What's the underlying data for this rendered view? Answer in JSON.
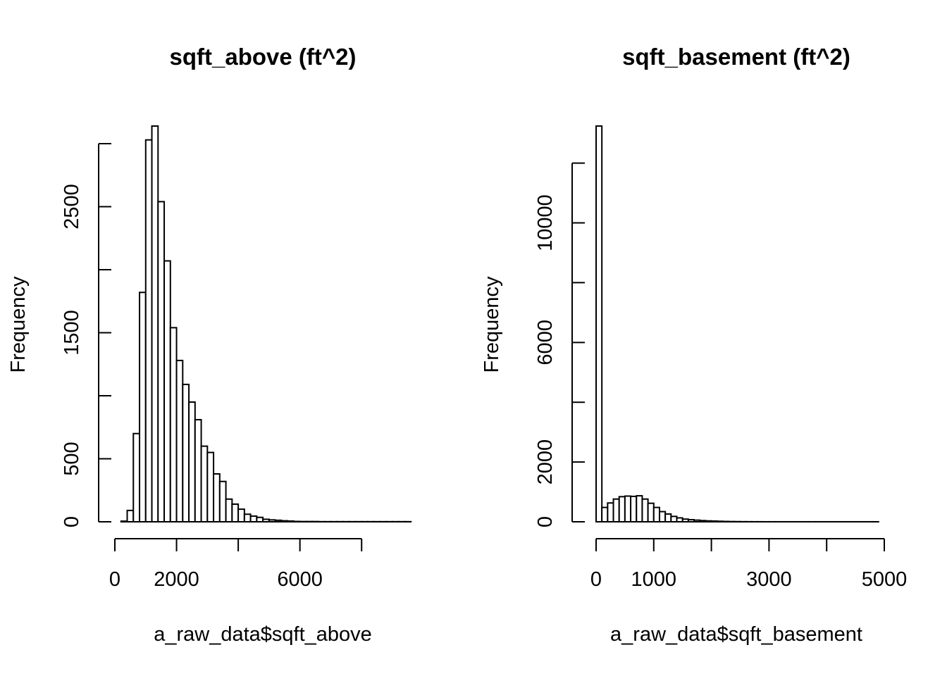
{
  "chart_data": [
    {
      "type": "bar",
      "title": "sqft_above (ft^2)",
      "xlabel": "a_raw_data$sqft_above",
      "ylabel": "Frequency",
      "bin_start": 200,
      "bin_width": 200,
      "values": [
        5,
        90,
        700,
        1820,
        3030,
        3140,
        2540,
        2070,
        1540,
        1280,
        1090,
        950,
        810,
        600,
        550,
        380,
        320,
        180,
        140,
        100,
        60,
        45,
        35,
        20,
        15,
        12,
        8,
        6,
        3,
        2,
        2,
        2,
        1,
        1,
        1,
        1,
        1,
        1,
        1,
        1,
        1,
        1,
        1,
        1,
        1,
        1,
        1
      ],
      "xlim": [
        0,
        9800
      ],
      "ylim": [
        0,
        3140
      ],
      "x_ticks": [
        0,
        2000,
        4000,
        6000,
        8000
      ],
      "x_tick_labels": [
        "0",
        "2000",
        "",
        "6000",
        ""
      ],
      "y_ticks": [
        0,
        500,
        1000,
        1500,
        2000,
        2500,
        3000
      ],
      "y_tick_labels": [
        "0",
        "500",
        "",
        "1500",
        "",
        "2500",
        ""
      ]
    },
    {
      "type": "bar",
      "title": "sqft_basement (ft^2)",
      "xlabel": "a_raw_data$sqft_basement",
      "ylabel": "Frequency",
      "bin_start": 0,
      "bin_width": 100,
      "values": [
        13240,
        480,
        630,
        760,
        840,
        860,
        850,
        870,
        760,
        620,
        480,
        340,
        260,
        180,
        130,
        90,
        70,
        55,
        40,
        30,
        25,
        18,
        12,
        8,
        6,
        4,
        3,
        2,
        2,
        1,
        1,
        1,
        1,
        1,
        1,
        1,
        1,
        1,
        1,
        1,
        1,
        1,
        1,
        1,
        1,
        1,
        1,
        1,
        1
      ],
      "xlim": [
        0,
        5000
      ],
      "ylim": [
        0,
        13240
      ],
      "x_ticks": [
        0,
        1000,
        2000,
        3000,
        4000,
        5000
      ],
      "x_tick_labels": [
        "0",
        "1000",
        "",
        "3000",
        "",
        "5000"
      ],
      "y_ticks": [
        0,
        2000,
        4000,
        6000,
        8000,
        10000,
        12000
      ],
      "y_tick_labels": [
        "0",
        "2000",
        "",
        "6000",
        "",
        "10000",
        ""
      ]
    }
  ]
}
